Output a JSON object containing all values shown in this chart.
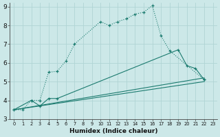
{
  "xlabel": "Humidex (Indice chaleur)",
  "xlim": [
    -0.5,
    23.5
  ],
  "ylim": [
    3,
    9.2
  ],
  "yticks": [
    3,
    4,
    5,
    6,
    7,
    8,
    9
  ],
  "xticks": [
    0,
    1,
    2,
    3,
    4,
    5,
    6,
    7,
    8,
    9,
    10,
    11,
    12,
    13,
    14,
    15,
    16,
    17,
    18,
    19,
    20,
    21,
    22,
    23
  ],
  "background_color": "#cce8e8",
  "grid_color": "#b0d4d4",
  "line_color": "#1a7a6e",
  "lines": [
    {
      "x": [
        0,
        1,
        2,
        3,
        4,
        5,
        6,
        7,
        10,
        11,
        12,
        13,
        14,
        15,
        16,
        17,
        18,
        22
      ],
      "y": [
        3.5,
        3.5,
        4.0,
        4.0,
        5.5,
        5.55,
        6.1,
        7.0,
        8.2,
        8.0,
        8.2,
        8.35,
        8.6,
        8.7,
        9.05,
        7.45,
        6.65,
        5.1
      ],
      "marker": "+",
      "linestyle": "dotted"
    },
    {
      "x": [
        0,
        2,
        3,
        4,
        5,
        19,
        20,
        21,
        22
      ],
      "y": [
        3.5,
        4.0,
        3.7,
        4.1,
        4.1,
        6.7,
        5.85,
        5.7,
        5.1
      ],
      "marker": "+",
      "linestyle": "solid"
    },
    {
      "x": [
        0,
        22
      ],
      "y": [
        3.5,
        5.2
      ],
      "marker": null,
      "linestyle": "solid"
    },
    {
      "x": [
        0,
        22
      ],
      "y": [
        3.5,
        5.0
      ],
      "marker": null,
      "linestyle": "solid"
    }
  ]
}
